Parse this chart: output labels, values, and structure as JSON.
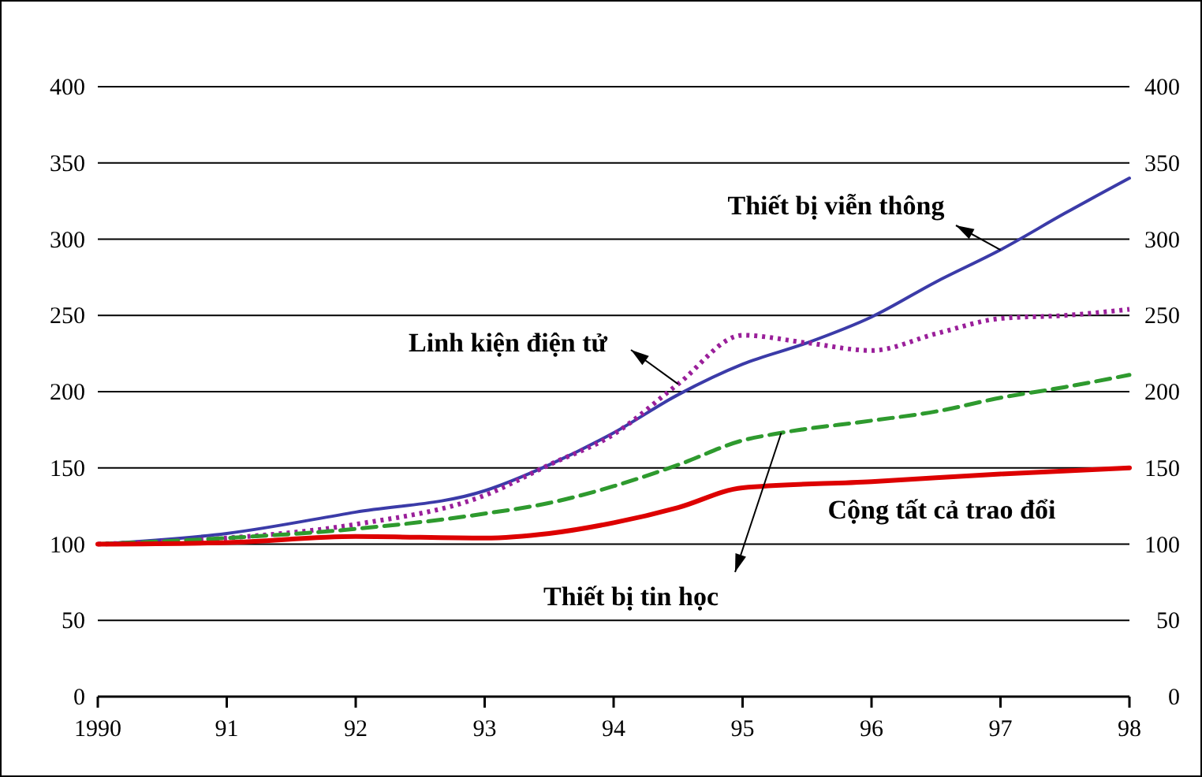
{
  "chart_data": {
    "type": "line",
    "xlim": [
      1990,
      1998
    ],
    "xticks": [
      1990,
      {
        "value": 1991,
        "label": "91"
      },
      {
        "value": 1992,
        "label": "92"
      },
      {
        "value": 1993,
        "label": "93"
      },
      {
        "value": 1994,
        "label": "94"
      },
      {
        "value": 1995,
        "label": "95"
      },
      {
        "value": 1996,
        "label": "96"
      },
      {
        "value": 1997,
        "label": "97"
      },
      {
        "value": 1998,
        "label": "98"
      }
    ],
    "ylim": [
      0,
      400
    ],
    "yticks": [
      0,
      50,
      100,
      150,
      200,
      250,
      300,
      350,
      400
    ],
    "y2lim": [
      0,
      400
    ],
    "y2ticks": [
      0,
      50,
      100,
      150,
      200,
      250,
      300,
      350,
      400
    ],
    "grid": "y",
    "marker": "none",
    "series": [
      {
        "name": "Thiết bị viễn thông",
        "color": "#3b3ba8",
        "line_style": "solid",
        "x": [
          1990,
          1991,
          1992,
          1993,
          1993.5,
          1994,
          1994.5,
          1995,
          1995.5,
          1996,
          1996.5,
          1997,
          1997.5,
          1998
        ],
        "values": [
          100,
          107,
          121,
          135,
          152,
          173,
          198,
          218,
          232,
          249,
          272,
          293,
          317,
          340
        ]
      },
      {
        "name": "Linh kiện điện tử",
        "color": "#9a1f9a",
        "line_style": "dotted",
        "x": [
          1990,
          1991,
          1992,
          1993,
          1993.5,
          1994,
          1994.5,
          1995,
          1995.5,
          1996,
          1996.5,
          1997,
          1997.5,
          1998
        ],
        "values": [
          100,
          104,
          113,
          132,
          152,
          172,
          205,
          237,
          232,
          227,
          238,
          248,
          250,
          254
        ]
      },
      {
        "name": "Thiết bị tin học",
        "color": "#2e9a2e",
        "line_style": "dashed",
        "x": [
          1990,
          1991,
          1992,
          1993,
          1993.5,
          1994,
          1994.5,
          1995,
          1995.3,
          1996,
          1996.5,
          1997,
          1997.5,
          1998
        ],
        "values": [
          100,
          104,
          110,
          120,
          127,
          138,
          152,
          168,
          173,
          181,
          187,
          196,
          203,
          211
        ]
      },
      {
        "name": "Cộng tất cả trao đổi",
        "color": "#dd0000",
        "line_style": "solid",
        "x": [
          1990,
          1991,
          1992,
          1993,
          1993.5,
          1994,
          1994.5,
          1995,
          1996,
          1997,
          1998
        ],
        "values": [
          100,
          101,
          105,
          104,
          107,
          114,
          124,
          137,
          141,
          146,
          150
        ]
      }
    ]
  }
}
